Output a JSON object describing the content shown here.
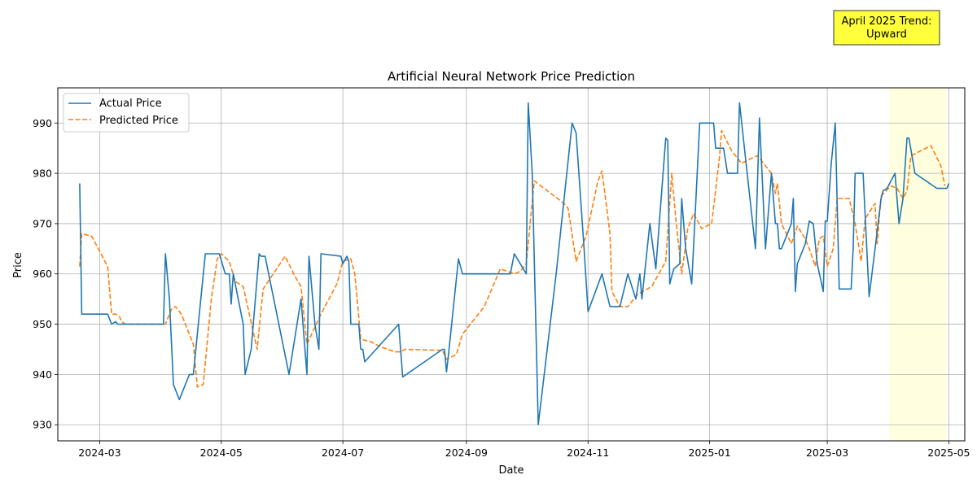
{
  "chart_data": {
    "type": "line",
    "title": "Artificial Neural Network Price Prediction",
    "xlabel": "Date",
    "ylabel": "Price",
    "xlim": [
      "2024-02-09",
      "2025-05-09"
    ],
    "ylim": [
      926.8,
      997.0
    ],
    "x_ticks": [
      "2024-03-01",
      "2024-05-01",
      "2024-07-01",
      "2024-09-01",
      "2024-11-01",
      "2025-01-01",
      "2025-03-01",
      "2025-05-01"
    ],
    "x_tick_labels": [
      "2024-03",
      "2024-05",
      "2024-07",
      "2024-09",
      "2024-11",
      "2025-01",
      "2025-03",
      "2025-05"
    ],
    "y_ticks": [
      930,
      940,
      950,
      960,
      970,
      980,
      990
    ],
    "grid": true,
    "legend_position": "upper-left",
    "highlight_region": {
      "start": "2025-04-01",
      "end": "2025-04-30",
      "color": "#ffffe0"
    },
    "annotation": {
      "line1": "April 2025 Trend:",
      "line2": "Upward"
    },
    "series": [
      {
        "name": "Actual Price",
        "color": "#1f77b4",
        "style": "solid",
        "points": [
          [
            "2024-02-20",
            978
          ],
          [
            "2024-02-21",
            952
          ],
          [
            "2024-03-05",
            952
          ],
          [
            "2024-03-07",
            950
          ],
          [
            "2024-03-09",
            950.5
          ],
          [
            "2024-03-10",
            950
          ],
          [
            "2024-04-02",
            950
          ],
          [
            "2024-04-03",
            964
          ],
          [
            "2024-04-05",
            955
          ],
          [
            "2024-04-07",
            938
          ],
          [
            "2024-04-10",
            935
          ],
          [
            "2024-04-15",
            940
          ],
          [
            "2024-04-17",
            940
          ],
          [
            "2024-04-20",
            952
          ],
          [
            "2024-04-23",
            964
          ],
          [
            "2024-04-30",
            964
          ],
          [
            "2024-05-03",
            960
          ],
          [
            "2024-05-05",
            960
          ],
          [
            "2024-05-06",
            954
          ],
          [
            "2024-05-07",
            960
          ],
          [
            "2024-05-12",
            950
          ],
          [
            "2024-05-13",
            940
          ],
          [
            "2024-05-16",
            945
          ],
          [
            "2024-05-20",
            964
          ],
          [
            "2024-05-21",
            963.5
          ],
          [
            "2024-05-23",
            963.5
          ],
          [
            "2024-06-04",
            940
          ],
          [
            "2024-06-10",
            955
          ],
          [
            "2024-06-13",
            940
          ],
          [
            "2024-06-14",
            963.5
          ],
          [
            "2024-06-17",
            950
          ],
          [
            "2024-06-19",
            945
          ],
          [
            "2024-06-20",
            964
          ],
          [
            "2024-06-30",
            963.5
          ],
          [
            "2024-07-01",
            962
          ],
          [
            "2024-07-03",
            963.5
          ],
          [
            "2024-07-04",
            962.5
          ],
          [
            "2024-07-05",
            950
          ],
          [
            "2024-07-09",
            950
          ],
          [
            "2024-07-10",
            945
          ],
          [
            "2024-07-11",
            945
          ],
          [
            "2024-07-12",
            942.5
          ],
          [
            "2024-07-29",
            950
          ],
          [
            "2024-07-31",
            939.5
          ],
          [
            "2024-08-20",
            945
          ],
          [
            "2024-08-21",
            945
          ],
          [
            "2024-08-22",
            940.5
          ],
          [
            "2024-08-23",
            944
          ],
          [
            "2024-08-28",
            963
          ],
          [
            "2024-08-30",
            960
          ],
          [
            "2024-09-23",
            960
          ],
          [
            "2024-09-25",
            964
          ],
          [
            "2024-10-01",
            960
          ],
          [
            "2024-10-02",
            994
          ],
          [
            "2024-10-04",
            980
          ],
          [
            "2024-10-07",
            930
          ],
          [
            "2024-10-16",
            960
          ],
          [
            "2024-10-24",
            990
          ],
          [
            "2024-10-26",
            988
          ],
          [
            "2024-10-30",
            965
          ],
          [
            "2024-11-01",
            952.5
          ],
          [
            "2024-11-08",
            960
          ],
          [
            "2024-11-12",
            953.5
          ],
          [
            "2024-11-17",
            953.5
          ],
          [
            "2024-11-21",
            960
          ],
          [
            "2024-11-25",
            955
          ],
          [
            "2024-11-27",
            960
          ],
          [
            "2024-11-28",
            955
          ],
          [
            "2024-12-02",
            970
          ],
          [
            "2024-12-05",
            961
          ],
          [
            "2024-12-10",
            987
          ],
          [
            "2024-12-11",
            986.5
          ],
          [
            "2024-12-12",
            958
          ],
          [
            "2024-12-14",
            961
          ],
          [
            "2024-12-17",
            962
          ],
          [
            "2024-12-18",
            975
          ],
          [
            "2024-12-20",
            965
          ],
          [
            "2024-12-23",
            958
          ],
          [
            "2024-12-27",
            990
          ],
          [
            "2025-01-03",
            990
          ],
          [
            "2025-01-04",
            985
          ],
          [
            "2025-01-06",
            985
          ],
          [
            "2025-01-08",
            985
          ],
          [
            "2025-01-10",
            980
          ],
          [
            "2025-01-15",
            980
          ],
          [
            "2025-01-16",
            994
          ],
          [
            "2025-01-19",
            983
          ],
          [
            "2025-01-24",
            965
          ],
          [
            "2025-01-26",
            991
          ],
          [
            "2025-01-29",
            965
          ],
          [
            "2025-02-01",
            980
          ],
          [
            "2025-02-03",
            970
          ],
          [
            "2025-02-04",
            970
          ],
          [
            "2025-02-05",
            965
          ],
          [
            "2025-02-06",
            965
          ],
          [
            "2025-02-11",
            970
          ],
          [
            "2025-02-12",
            975
          ],
          [
            "2025-02-13",
            956.5
          ],
          [
            "2025-02-14",
            962
          ],
          [
            "2025-02-18",
            966
          ],
          [
            "2025-02-20",
            970.5
          ],
          [
            "2025-02-22",
            970
          ],
          [
            "2025-02-24",
            962
          ],
          [
            "2025-02-27",
            956.5
          ],
          [
            "2025-02-28",
            970.5
          ],
          [
            "2025-03-01",
            970.5
          ],
          [
            "2025-03-03",
            982
          ],
          [
            "2025-03-05",
            990
          ],
          [
            "2025-03-07",
            957
          ],
          [
            "2025-03-13",
            957
          ],
          [
            "2025-03-14",
            965
          ],
          [
            "2025-03-15",
            980
          ],
          [
            "2025-03-19",
            980
          ],
          [
            "2025-03-22",
            955.5
          ],
          [
            "2025-03-25",
            965
          ],
          [
            "2025-03-28",
            975
          ],
          [
            "2025-03-29",
            976.5
          ],
          [
            "2025-03-31",
            977
          ],
          [
            "2025-04-04",
            980
          ],
          [
            "2025-04-06",
            970
          ],
          [
            "2025-04-08",
            975
          ],
          [
            "2025-04-10",
            987
          ],
          [
            "2025-04-11",
            987
          ],
          [
            "2025-04-14",
            980
          ],
          [
            "2025-04-25",
            977
          ],
          [
            "2025-04-30",
            977
          ],
          [
            "2025-05-01",
            978
          ]
        ]
      },
      {
        "name": "Predicted Price",
        "color": "#ff7f0e",
        "style": "dashed",
        "points": [
          [
            "2024-02-20",
            961.5
          ],
          [
            "2024-02-21",
            968
          ],
          [
            "2024-02-26",
            967.5
          ],
          [
            "2024-03-05",
            961.5
          ],
          [
            "2024-03-07",
            952
          ],
          [
            "2024-03-09",
            952
          ],
          [
            "2024-03-11",
            951.5
          ],
          [
            "2024-03-12",
            950.5
          ],
          [
            "2024-03-14",
            950
          ],
          [
            "2024-04-01",
            950
          ],
          [
            "2024-04-03",
            950
          ],
          [
            "2024-04-06",
            953
          ],
          [
            "2024-04-08",
            953.5
          ],
          [
            "2024-04-11",
            952
          ],
          [
            "2024-04-17",
            946
          ],
          [
            "2024-04-19",
            937.5
          ],
          [
            "2024-04-22",
            938
          ],
          [
            "2024-04-26",
            955
          ],
          [
            "2024-04-29",
            963
          ],
          [
            "2024-05-01",
            964
          ],
          [
            "2024-05-05",
            962.5
          ],
          [
            "2024-05-08",
            958.5
          ],
          [
            "2024-05-12",
            957.5
          ],
          [
            "2024-05-19",
            945
          ],
          [
            "2024-05-22",
            957
          ],
          [
            "2024-06-02",
            963.5
          ],
          [
            "2024-06-07",
            959.5
          ],
          [
            "2024-06-10",
            957.5
          ],
          [
            "2024-06-13",
            946
          ],
          [
            "2024-06-20",
            952
          ],
          [
            "2024-06-28",
            958
          ],
          [
            "2024-07-01",
            962.5
          ],
          [
            "2024-07-05",
            963
          ],
          [
            "2024-07-07",
            960
          ],
          [
            "2024-07-10",
            947
          ],
          [
            "2024-07-15",
            946.5
          ],
          [
            "2024-07-20",
            945.5
          ],
          [
            "2024-07-27",
            944.5
          ],
          [
            "2024-07-30",
            944.5
          ],
          [
            "2024-08-01",
            945
          ],
          [
            "2024-08-20",
            944.8
          ],
          [
            "2024-08-22",
            943
          ],
          [
            "2024-08-27",
            944
          ],
          [
            "2024-08-30",
            948
          ],
          [
            "2024-09-10",
            953.5
          ],
          [
            "2024-09-18",
            961
          ],
          [
            "2024-09-25",
            960
          ],
          [
            "2024-09-28",
            960.5
          ],
          [
            "2024-10-01",
            962
          ],
          [
            "2024-10-05",
            978.5
          ],
          [
            "2024-10-10",
            977
          ],
          [
            "2024-10-20",
            974
          ],
          [
            "2024-10-22",
            973
          ],
          [
            "2024-10-26",
            962.5
          ],
          [
            "2024-10-31",
            967.5
          ],
          [
            "2024-11-06",
            978.5
          ],
          [
            "2024-11-08",
            980.5
          ],
          [
            "2024-11-12",
            968
          ],
          [
            "2024-11-13",
            956.5
          ],
          [
            "2024-11-17",
            953.5
          ],
          [
            "2024-11-21",
            953.5
          ],
          [
            "2024-11-26",
            956
          ],
          [
            "2024-12-03",
            957.5
          ],
          [
            "2024-12-10",
            962.5
          ],
          [
            "2024-12-13",
            980
          ],
          [
            "2024-12-15",
            971
          ],
          [
            "2024-12-18",
            960
          ],
          [
            "2024-12-21",
            969
          ],
          [
            "2024-12-24",
            972
          ],
          [
            "2024-12-28",
            969
          ],
          [
            "2025-01-02",
            970
          ],
          [
            "2025-01-06",
            983.5
          ],
          [
            "2025-01-07",
            988.5
          ],
          [
            "2025-01-12",
            984.5
          ],
          [
            "2025-01-17",
            982
          ],
          [
            "2025-01-22",
            983
          ],
          [
            "2025-01-25",
            983.5
          ],
          [
            "2025-01-28",
            982
          ],
          [
            "2025-02-01",
            980
          ],
          [
            "2025-02-03",
            976
          ],
          [
            "2025-02-04",
            978
          ],
          [
            "2025-02-06",
            970
          ],
          [
            "2025-02-11",
            966
          ],
          [
            "2025-02-14",
            969.5
          ],
          [
            "2025-02-18",
            967
          ],
          [
            "2025-02-20",
            965
          ],
          [
            "2025-02-23",
            961.5
          ],
          [
            "2025-02-25",
            967
          ],
          [
            "2025-02-27",
            967.5
          ],
          [
            "2025-03-01",
            961.5
          ],
          [
            "2025-03-04",
            965
          ],
          [
            "2025-03-06",
            975
          ],
          [
            "2025-03-08",
            975
          ],
          [
            "2025-03-12",
            975
          ],
          [
            "2025-03-15",
            970
          ],
          [
            "2025-03-18",
            962.5
          ],
          [
            "2025-03-20",
            971
          ],
          [
            "2025-03-25",
            974
          ],
          [
            "2025-03-26",
            966
          ],
          [
            "2025-03-28",
            975.5
          ],
          [
            "2025-04-02",
            977.5
          ],
          [
            "2025-04-05",
            977
          ],
          [
            "2025-04-08",
            975
          ],
          [
            "2025-04-10",
            976.5
          ],
          [
            "2025-04-12",
            983.5
          ],
          [
            "2025-04-22",
            985.5
          ],
          [
            "2025-04-27",
            981.5
          ],
          [
            "2025-04-29",
            977.5
          ]
        ]
      }
    ]
  }
}
